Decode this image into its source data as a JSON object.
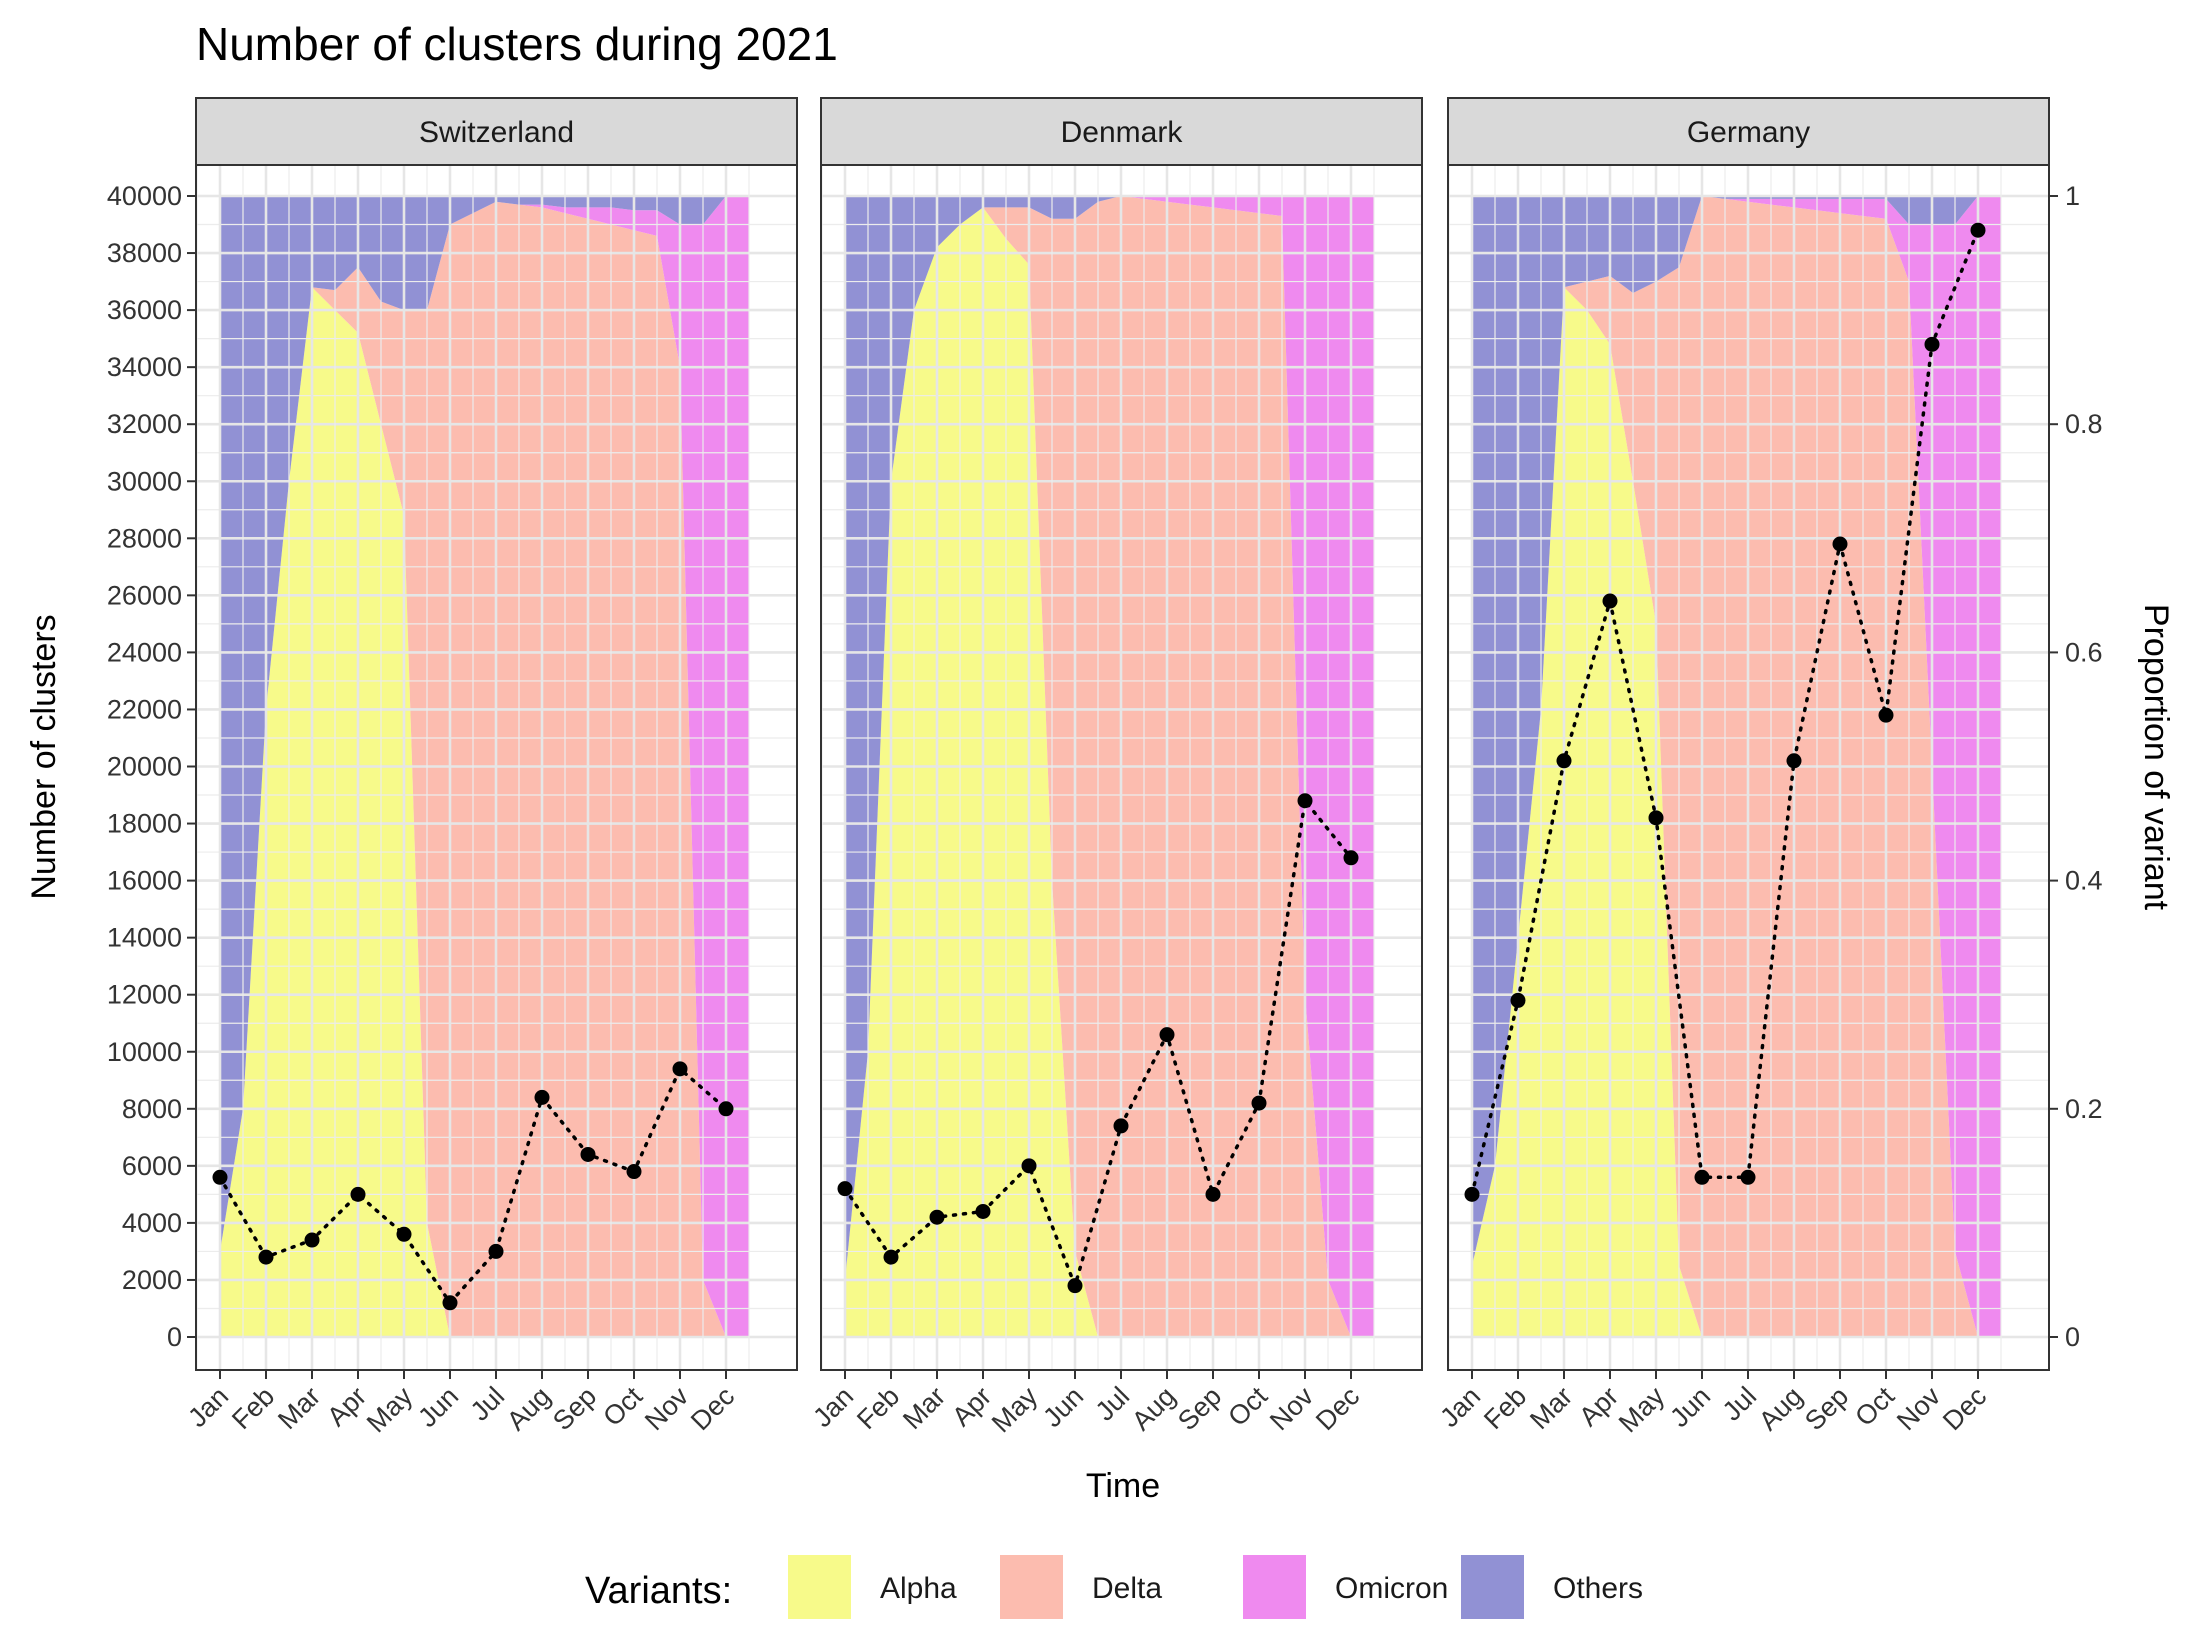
{
  "chart_data": {
    "type": "area",
    "title": "Number of clusters during 2021",
    "xlabel": "Time",
    "ylabel": "Number of clusters",
    "y2label": "Proportion of variant",
    "ylim": [
      0,
      40000
    ],
    "y_ticks": [
      0,
      2000,
      4000,
      6000,
      8000,
      10000,
      12000,
      14000,
      16000,
      18000,
      20000,
      22000,
      24000,
      26000,
      28000,
      30000,
      32000,
      34000,
      36000,
      38000,
      40000
    ],
    "y2lim": [
      0,
      1
    ],
    "y2_ticks": [
      "0",
      "0.2",
      "0.4",
      "0.6",
      "0.8",
      "1"
    ],
    "categories": [
      "Jan",
      "Feb",
      "Mar",
      "Apr",
      "May",
      "Jun",
      "Jul",
      "Aug",
      "Sep",
      "Oct",
      "Nov",
      "Dec"
    ],
    "legend": {
      "title": "Variants:",
      "position": "bottom",
      "items": [
        {
          "name": "Alpha",
          "color": "#f7fa8a"
        },
        {
          "name": "Delta",
          "color": "#fcbcaf"
        },
        {
          "name": "Omicron",
          "color": "#ef8aef"
        },
        {
          "name": "Others",
          "color": "#9191d4"
        }
      ]
    },
    "grid": true,
    "panels": [
      {
        "name": "Switzerland",
        "x": [
          0.0,
          0.5,
          1.0,
          1.5,
          2.0,
          2.5,
          3.0,
          3.5,
          4.0,
          4.5,
          5.0,
          5.5,
          6.0,
          6.5,
          7.0,
          7.5,
          8.0,
          8.5,
          9.0,
          9.5,
          10.0,
          10.5,
          11.0,
          11.5
        ],
        "alpha": [
          3000,
          8000,
          22000,
          30000,
          36800,
          36000,
          35200,
          32000,
          28800,
          4000,
          0,
          0,
          0,
          0,
          0,
          0,
          0,
          0,
          0,
          0,
          0,
          0,
          0,
          0
        ],
        "delta": [
          0,
          0,
          0,
          0,
          0,
          700,
          2300,
          4300,
          7200,
          32000,
          39000,
          39400,
          39800,
          39700,
          39600,
          39400,
          39200,
          39000,
          38800,
          38600,
          34000,
          2000,
          0,
          0
        ],
        "omicron": [
          0,
          0,
          0,
          0,
          0,
          0,
          0,
          0,
          0,
          0,
          0,
          0,
          0,
          0,
          100,
          200,
          400,
          600,
          700,
          900,
          5000,
          37000,
          40000,
          40000
        ],
        "others": [
          37000,
          32000,
          18000,
          10000,
          3200,
          3300,
          2500,
          3700,
          4000,
          4000,
          1000,
          600,
          200,
          300,
          300,
          400,
          400,
          400,
          500,
          500,
          1000,
          1000,
          0,
          0
        ],
        "proportion": [
          0.14,
          0.07,
          0.085,
          0.125,
          0.09,
          0.03,
          0.075,
          0.21,
          0.16,
          0.145,
          0.235,
          0.2
        ]
      },
      {
        "name": "Denmark",
        "x": [
          0.0,
          0.5,
          1.0,
          1.5,
          2.0,
          2.5,
          3.0,
          3.5,
          4.0,
          4.5,
          5.0,
          5.5,
          6.0,
          6.5,
          7.0,
          7.5,
          8.0,
          8.5,
          9.0,
          9.5,
          10.0,
          10.5,
          11.0,
          11.5
        ],
        "alpha": [
          2000,
          10000,
          30000,
          36000,
          38200,
          39000,
          39600,
          38500,
          37600,
          16000,
          3000,
          0,
          0,
          0,
          0,
          0,
          0,
          0,
          0,
          0,
          0,
          0,
          0,
          0
        ],
        "delta": [
          0,
          0,
          0,
          0,
          0,
          0,
          0,
          1100,
          2000,
          23200,
          36200,
          39800,
          40000,
          39900,
          39800,
          39700,
          39600,
          39500,
          39400,
          39300,
          12000,
          2000,
          0,
          0
        ],
        "omicron": [
          0,
          0,
          0,
          0,
          0,
          0,
          0,
          0,
          0,
          0,
          0,
          0,
          0,
          100,
          200,
          300,
          400,
          500,
          600,
          700,
          28000,
          38000,
          40000,
          40000
        ],
        "others": [
          38000,
          30000,
          10000,
          4000,
          1800,
          1000,
          400,
          400,
          400,
          800,
          800,
          200,
          0,
          0,
          0,
          0,
          0,
          0,
          0,
          0,
          0,
          0,
          0,
          0
        ],
        "proportion": [
          0.13,
          0.07,
          0.105,
          0.11,
          0.15,
          0.045,
          0.185,
          0.265,
          0.125,
          0.205,
          0.47,
          0.42
        ]
      },
      {
        "name": "Germany",
        "x": [
          0.0,
          0.5,
          1.0,
          1.5,
          2.0,
          2.5,
          3.0,
          3.5,
          4.0,
          4.5,
          5.0,
          5.5,
          6.0,
          6.5,
          7.0,
          7.5,
          8.0,
          8.5,
          9.0,
          9.5,
          10.0,
          10.5,
          11.0,
          11.5
        ],
        "alpha": [
          2500,
          6000,
          14000,
          22000,
          36800,
          36000,
          34800,
          30000,
          25000,
          2500,
          0,
          0,
          0,
          0,
          0,
          0,
          0,
          0,
          0,
          0,
          0,
          0,
          0,
          0
        ],
        "delta": [
          0,
          0,
          0,
          0,
          0,
          1000,
          2400,
          6600,
          12000,
          35000,
          40000,
          39900,
          39800,
          39700,
          39600,
          39500,
          39400,
          39300,
          39200,
          37000,
          20000,
          3000,
          0,
          0
        ],
        "omicron": [
          0,
          0,
          0,
          0,
          0,
          0,
          0,
          0,
          0,
          0,
          0,
          0,
          100,
          200,
          300,
          400,
          500,
          600,
          700,
          2000,
          19000,
          36000,
          40000,
          40000
        ],
        "others": [
          37500,
          34000,
          26000,
          18000,
          3200,
          3000,
          2800,
          3400,
          3000,
          2500,
          0,
          100,
          100,
          100,
          100,
          100,
          100,
          100,
          100,
          1000,
          1000,
          1000,
          0,
          0
        ],
        "proportion": [
          0.125,
          0.295,
          0.505,
          0.645,
          0.455,
          0.14,
          0.14,
          0.505,
          0.695,
          0.545,
          0.87,
          0.97
        ]
      }
    ]
  }
}
